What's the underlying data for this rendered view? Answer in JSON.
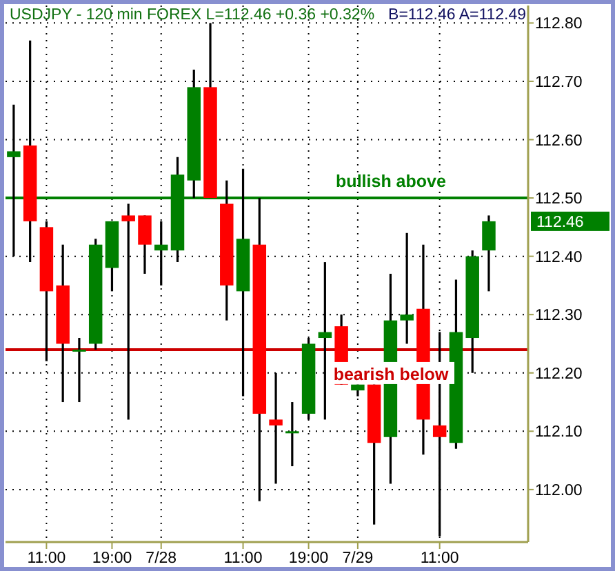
{
  "chart_data": {
    "type": "candlestick",
    "title": "USDJPY - 120 min   FOREX   L=112.46  +0.36  +0.32%",
    "subtitle": "B=112.46  A=112.49",
    "categories": [
      null,
      null,
      "11:00",
      null,
      null,
      null,
      "19:00",
      null,
      null,
      "7/28",
      null,
      null,
      null,
      null,
      "11:00",
      null,
      null,
      null,
      "19:00",
      null,
      null,
      "7/29",
      null,
      null,
      null,
      null,
      "11:00",
      null,
      null,
      null
    ],
    "ohlc": [
      [
        112.57,
        112.66,
        112.4,
        112.58
      ],
      [
        112.59,
        112.77,
        112.39,
        112.46
      ],
      [
        112.45,
        112.46,
        112.22,
        112.34
      ],
      [
        112.35,
        112.42,
        112.15,
        112.25
      ],
      [
        112.24,
        112.26,
        112.15,
        112.24
      ],
      [
        112.25,
        112.43,
        112.24,
        112.42
      ],
      [
        112.38,
        112.46,
        112.34,
        112.46
      ],
      [
        112.47,
        112.49,
        112.12,
        112.46
      ],
      [
        112.47,
        112.47,
        112.37,
        112.42
      ],
      [
        112.41,
        112.46,
        112.35,
        112.42
      ],
      [
        112.41,
        112.57,
        112.39,
        112.54
      ],
      [
        112.53,
        112.72,
        112.5,
        112.69
      ],
      [
        112.69,
        112.8,
        112.5,
        112.5
      ],
      [
        112.49,
        112.53,
        112.29,
        112.35
      ],
      [
        112.34,
        112.55,
        112.16,
        112.43
      ],
      [
        112.42,
        112.5,
        111.98,
        112.13
      ],
      [
        112.12,
        112.2,
        112.01,
        112.11
      ],
      [
        112.1,
        112.15,
        112.04,
        112.1
      ],
      [
        112.13,
        112.26,
        112.12,
        112.25
      ],
      [
        112.26,
        112.39,
        112.12,
        112.27
      ],
      [
        112.28,
        112.3,
        112.18,
        112.18
      ],
      [
        112.17,
        112.18,
        112.16,
        112.18
      ],
      [
        112.18,
        112.18,
        111.94,
        112.08
      ],
      [
        112.09,
        112.37,
        112.01,
        112.29
      ],
      [
        112.29,
        112.44,
        112.25,
        112.3
      ],
      [
        112.31,
        112.42,
        112.06,
        112.12
      ],
      [
        112.11,
        112.27,
        111.92,
        112.09
      ],
      [
        112.08,
        112.36,
        112.07,
        112.27
      ],
      [
        112.26,
        112.41,
        112.2,
        112.4
      ],
      [
        112.41,
        112.47,
        112.34,
        112.46
      ]
    ],
    "colors": [
      "#008000",
      "#ff0000",
      "#ff0000",
      "#ff0000",
      "#008000",
      "#008000",
      "#008000",
      "#ff0000",
      "#ff0000",
      "#008000",
      "#008000",
      "#008000",
      "#ff0000",
      "#ff0000",
      "#008000",
      "#ff0000",
      "#ff0000",
      "#008000",
      "#008000",
      "#008000",
      "#ff0000",
      "#008000",
      "#ff0000",
      "#008000",
      "#008000",
      "#ff0000",
      "#ff0000",
      "#008000",
      "#008000",
      "#008000"
    ],
    "ylim": [
      111.91,
      112.83
    ],
    "yticks": [
      {
        "value": 112.0,
        "label": "112.00"
      },
      {
        "value": 112.1,
        "label": "112.10"
      },
      {
        "value": 112.2,
        "label": "112.20"
      },
      {
        "value": 112.3,
        "label": "112.30"
      },
      {
        "value": 112.4,
        "label": "112.40"
      },
      {
        "value": 112.5,
        "label": "112.50"
      },
      {
        "value": 112.6,
        "label": "112.60"
      },
      {
        "value": 112.7,
        "label": "112.70"
      },
      {
        "value": 112.8,
        "label": "112.80"
      }
    ],
    "ref_lines": [
      {
        "axis": "y",
        "value": 112.5,
        "label": "bullish above",
        "color": "#008000"
      },
      {
        "axis": "y",
        "value": 112.24,
        "label": "bearish below",
        "color": "#cc0000"
      }
    ],
    "annotations": [
      "112.46"
    ],
    "grid": true
  }
}
